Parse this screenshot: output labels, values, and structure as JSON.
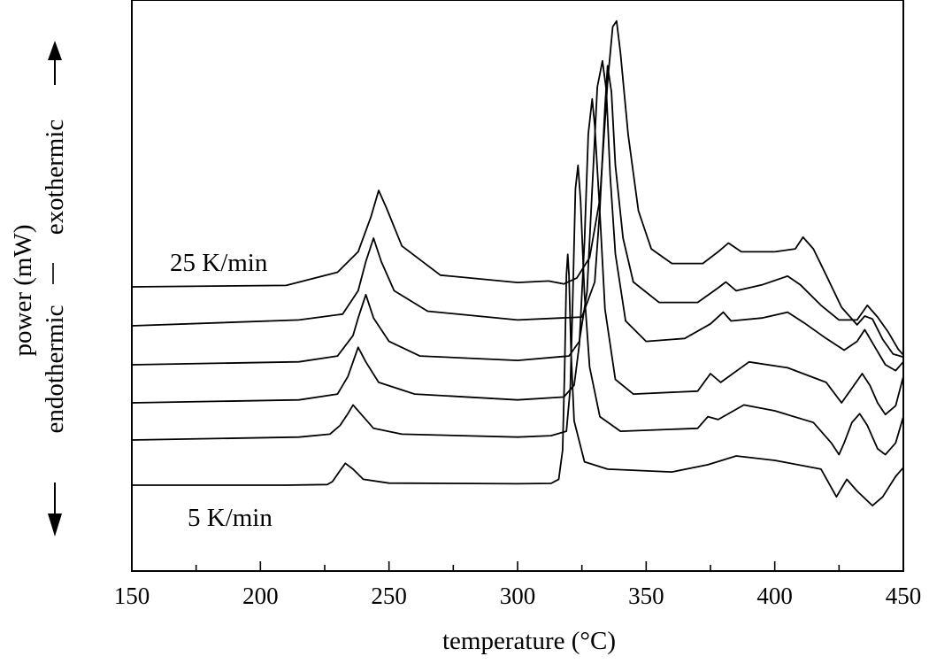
{
  "chart_data": {
    "type": "line",
    "xlabel": "temperature  (°C)",
    "ylabel": {
      "line1": "power  (mW)",
      "endo": "endothermic",
      "exo": "exothermic"
    },
    "xlim": [
      150,
      450
    ],
    "xticks": [
      "150",
      "200",
      "250",
      "300",
      "350",
      "400",
      "450"
    ],
    "yticks_shown": false,
    "grid": false,
    "annotations": {
      "top": "25 K/min",
      "bottom": "5 K/min"
    },
    "series": [
      {
        "points": [
          [
            150,
            0.0
          ],
          [
            210,
            0.0
          ],
          [
            226,
            0.02
          ],
          [
            228,
            0.12
          ],
          [
            231,
            0.5
          ],
          [
            233,
            0.75
          ],
          [
            236,
            0.55
          ],
          [
            240,
            0.2
          ],
          [
            250,
            0.07
          ],
          [
            300,
            0.05
          ],
          [
            313,
            0.06
          ],
          [
            316,
            0.2
          ],
          [
            317.5,
            1.2
          ],
          [
            318.3,
            4.0
          ],
          [
            319,
            7.2
          ],
          [
            319.5,
            7.9
          ],
          [
            320,
            7.2
          ],
          [
            320.8,
            4.5
          ],
          [
            322,
            2.2
          ],
          [
            326,
            0.8
          ],
          [
            335,
            0.55
          ],
          [
            360,
            0.45
          ],
          [
            374,
            0.7
          ],
          [
            385,
            1.0
          ],
          [
            400,
            0.85
          ],
          [
            418,
            0.55
          ],
          [
            424,
            -0.4
          ],
          [
            426,
            -0.1
          ],
          [
            428,
            0.2
          ],
          [
            432,
            -0.2
          ],
          [
            438,
            -0.7
          ],
          [
            442,
            -0.4
          ],
          [
            447,
            0.3
          ],
          [
            450,
            0.6
          ]
        ]
      },
      {
        "points": [
          [
            150,
            0.0
          ],
          [
            215,
            0.1
          ],
          [
            227,
            0.2
          ],
          [
            231,
            0.5
          ],
          [
            234,
            0.9
          ],
          [
            236,
            1.2
          ],
          [
            239,
            0.9
          ],
          [
            244,
            0.4
          ],
          [
            255,
            0.2
          ],
          [
            300,
            0.1
          ],
          [
            313,
            0.15
          ],
          [
            319,
            0.3
          ],
          [
            320.5,
            1.8
          ],
          [
            321.5,
            5.0
          ],
          [
            322.5,
            8.6
          ],
          [
            323.5,
            9.4
          ],
          [
            324.5,
            8.2
          ],
          [
            326,
            5.0
          ],
          [
            328,
            2.5
          ],
          [
            332,
            0.8
          ],
          [
            340,
            0.3
          ],
          [
            370,
            0.4
          ],
          [
            374,
            0.8
          ],
          [
            378,
            0.7
          ],
          [
            388,
            1.2
          ],
          [
            400,
            1.0
          ],
          [
            415,
            0.6
          ],
          [
            422,
            -0.1
          ],
          [
            425,
            -0.5
          ],
          [
            427,
            -0.1
          ],
          [
            430,
            0.6
          ],
          [
            433,
            0.9
          ],
          [
            436,
            0.5
          ],
          [
            440,
            -0.3
          ],
          [
            443,
            -0.5
          ],
          [
            447,
            -0.1
          ],
          [
            450,
            0.8
          ]
        ]
      },
      {
        "points": [
          [
            150,
            0.0
          ],
          [
            215,
            0.1
          ],
          [
            230,
            0.3
          ],
          [
            234,
            0.9
          ],
          [
            236,
            1.4
          ],
          [
            238,
            1.9
          ],
          [
            241,
            1.4
          ],
          [
            246,
            0.7
          ],
          [
            260,
            0.3
          ],
          [
            300,
            0.1
          ],
          [
            318,
            0.2
          ],
          [
            322,
            0.6
          ],
          [
            324,
            2.0
          ],
          [
            326,
            5.5
          ],
          [
            327.5,
            9.2
          ],
          [
            329,
            10.4
          ],
          [
            330,
            9.5
          ],
          [
            332,
            6.5
          ],
          [
            334,
            3.2
          ],
          [
            338,
            0.8
          ],
          [
            345,
            0.3
          ],
          [
            370,
            0.4
          ],
          [
            375,
            1.0
          ],
          [
            379,
            0.7
          ],
          [
            390,
            1.4
          ],
          [
            405,
            1.2
          ],
          [
            420,
            0.7
          ],
          [
            426,
            0.0
          ],
          [
            430,
            0.5
          ],
          [
            434,
            1.0
          ],
          [
            437,
            0.6
          ],
          [
            440,
            0.0
          ],
          [
            443,
            -0.4
          ],
          [
            447,
            -0.1
          ],
          [
            450,
            0.9
          ]
        ]
      },
      {
        "points": [
          [
            150,
            0.0
          ],
          [
            215,
            0.1
          ],
          [
            230,
            0.3
          ],
          [
            236,
            1.0
          ],
          [
            238,
            1.6
          ],
          [
            241,
            2.4
          ],
          [
            244,
            1.6
          ],
          [
            250,
            0.8
          ],
          [
            262,
            0.3
          ],
          [
            300,
            0.15
          ],
          [
            320,
            0.3
          ],
          [
            324,
            0.8
          ],
          [
            327,
            2.5
          ],
          [
            329,
            6.0
          ],
          [
            331,
            9.5
          ],
          [
            333,
            10.4
          ],
          [
            334.5,
            9.4
          ],
          [
            336,
            6.5
          ],
          [
            338,
            3.8
          ],
          [
            342,
            1.5
          ],
          [
            350,
            0.8
          ],
          [
            365,
            0.9
          ],
          [
            375,
            1.4
          ],
          [
            380,
            1.8
          ],
          [
            383,
            1.5
          ],
          [
            395,
            1.6
          ],
          [
            405,
            1.8
          ],
          [
            412,
            1.4
          ],
          [
            420,
            0.9
          ],
          [
            427,
            0.5
          ],
          [
            432,
            0.8
          ],
          [
            435,
            1.2
          ],
          [
            439,
            0.6
          ],
          [
            443,
            0.0
          ],
          [
            447,
            -0.2
          ],
          [
            450,
            0.1
          ]
        ]
      },
      {
        "points": [
          [
            150,
            0.0
          ],
          [
            215,
            0.2
          ],
          [
            232,
            0.4
          ],
          [
            238,
            1.2
          ],
          [
            241,
            2.2
          ],
          [
            244,
            3.0
          ],
          [
            247,
            2.2
          ],
          [
            252,
            1.2
          ],
          [
            265,
            0.5
          ],
          [
            300,
            0.2
          ],
          [
            325,
            0.3
          ],
          [
            330,
            1.5
          ],
          [
            332,
            4.0
          ],
          [
            334,
            7.5
          ],
          [
            335,
            8.9
          ],
          [
            336.5,
            8.0
          ],
          [
            338,
            5.5
          ],
          [
            341,
            3.0
          ],
          [
            345,
            1.5
          ],
          [
            355,
            0.8
          ],
          [
            370,
            0.8
          ],
          [
            378,
            1.3
          ],
          [
            381,
            1.5
          ],
          [
            385,
            1.2
          ],
          [
            395,
            1.4
          ],
          [
            405,
            1.7
          ],
          [
            410,
            1.4
          ],
          [
            418,
            0.7
          ],
          [
            425,
            0.2
          ],
          [
            432,
            0.2
          ],
          [
            436,
            0.7
          ],
          [
            440,
            0.3
          ],
          [
            444,
            -0.2
          ],
          [
            448,
            -0.8
          ],
          [
            450,
            -1.0
          ]
        ]
      },
      {
        "points": [
          [
            150,
            0.0
          ],
          [
            210,
            0.05
          ],
          [
            230,
            0.5
          ],
          [
            238,
            1.2
          ],
          [
            243,
            2.4
          ],
          [
            246,
            3.3
          ],
          [
            249,
            2.7
          ],
          [
            255,
            1.4
          ],
          [
            270,
            0.4
          ],
          [
            300,
            0.15
          ],
          [
            312,
            0.2
          ],
          [
            318,
            0.1
          ],
          [
            323,
            0.3
          ],
          [
            328,
            1.0
          ],
          [
            332,
            3.0
          ],
          [
            335,
            7.0
          ],
          [
            337,
            8.9
          ],
          [
            338.5,
            9.1
          ],
          [
            340,
            8.0
          ],
          [
            343,
            5.2
          ],
          [
            347,
            2.6
          ],
          [
            352,
            1.3
          ],
          [
            360,
            0.8
          ],
          [
            372,
            0.8
          ],
          [
            378,
            1.2
          ],
          [
            382,
            1.5
          ],
          [
            387,
            1.2
          ],
          [
            400,
            1.2
          ],
          [
            408,
            1.3
          ],
          [
            411,
            1.7
          ],
          [
            415,
            1.3
          ],
          [
            420,
            0.4
          ],
          [
            426,
            -0.7
          ],
          [
            432,
            -1.3
          ],
          [
            435,
            -1.0
          ],
          [
            438,
            -1.1
          ],
          [
            442,
            -1.8
          ],
          [
            446,
            -2.3
          ],
          [
            450,
            -2.4
          ]
        ]
      }
    ]
  }
}
